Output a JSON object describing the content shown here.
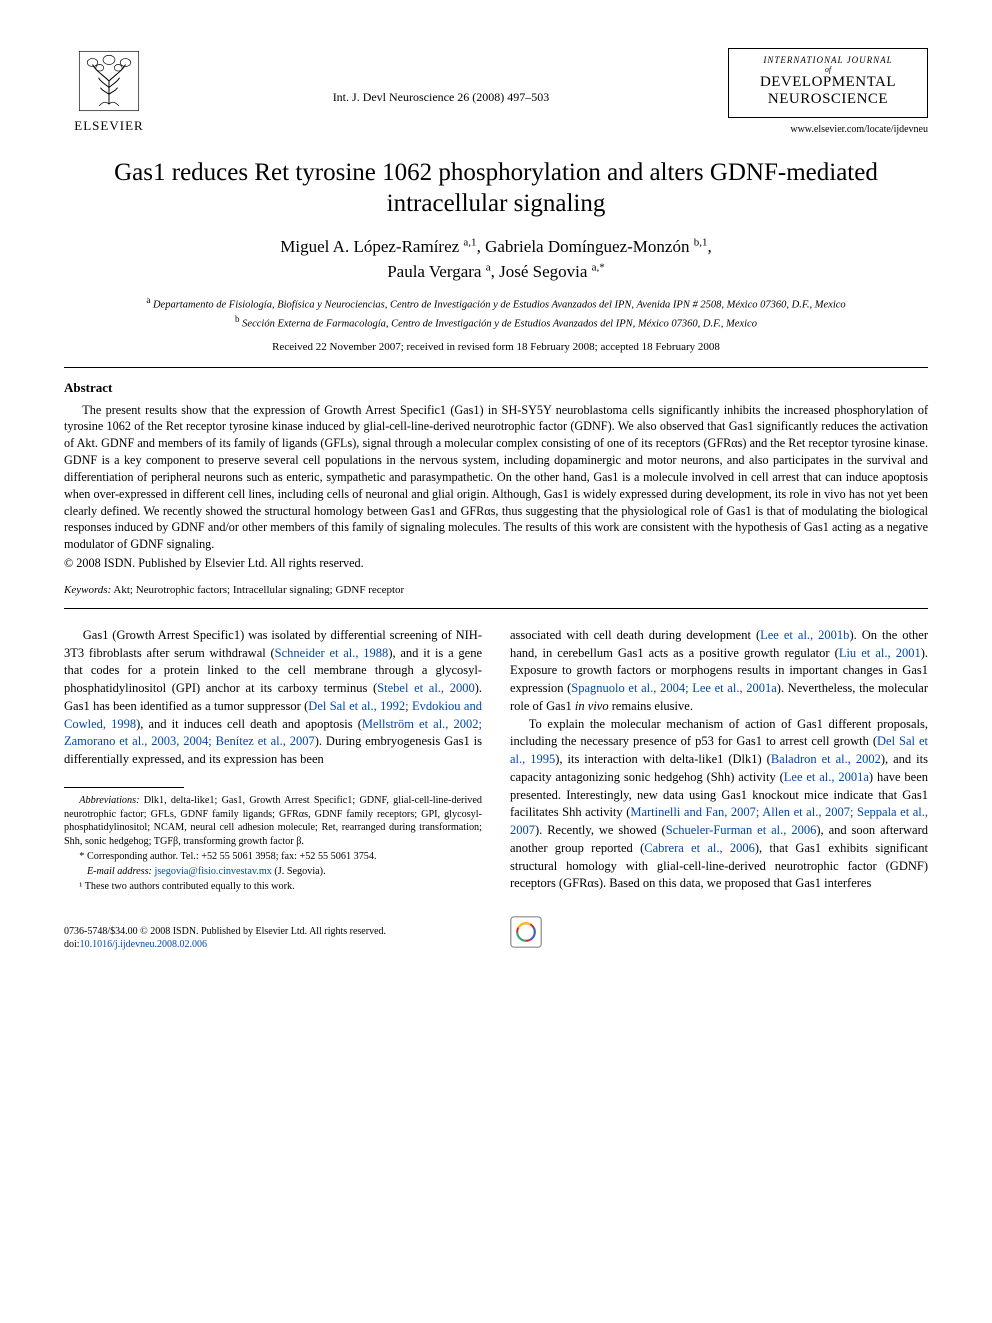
{
  "publisher": {
    "name": "ELSEVIER"
  },
  "citation": "Int. J. Devl Neuroscience 26 (2008) 497–503",
  "journal": {
    "top": "INTERNATIONAL JOURNAL",
    "of": "of",
    "main1": "DEVELOPMENTAL",
    "main2": "NEUROSCIENCE",
    "url": "www.elsevier.com/locate/ijdevneu"
  },
  "title": "Gas1 reduces Ret tyrosine 1062 phosphorylation and alters GDNF-mediated intracellular signaling",
  "authors_html": "Miguel A. López-Ramírez <sup>a,1</sup>, Gabriela Domínguez-Monzón <sup>b,1</sup>,<br>Paula Vergara <sup>a</sup>, José Segovia <sup>a,*</sup>",
  "affiliations": {
    "a": "Departamento de Fisiología, Biofísica y Neurociencias, Centro de Investigación y de Estudios Avanzados del IPN, Avenida IPN # 2508, México 07360, D.F., Mexico",
    "b": "Sección Externa de Farmacología, Centro de Investigación y de Estudios Avanzados del IPN, México 07360, D.F., Mexico"
  },
  "dates": "Received 22 November 2007; received in revised form 18 February 2008; accepted 18 February 2008",
  "abstract": {
    "heading": "Abstract",
    "body": "The present results show that the expression of Growth Arrest Specific1 (Gas1) in SH-SY5Y neuroblastoma cells significantly inhibits the increased phosphorylation of tyrosine 1062 of the Ret receptor tyrosine kinase induced by glial-cell-line-derived neurotrophic factor (GDNF). We also observed that Gas1 significantly reduces the activation of Akt. GDNF and members of its family of ligands (GFLs), signal through a molecular complex consisting of one of its receptors (GFRαs) and the Ret receptor tyrosine kinase. GDNF is a key component to preserve several cell populations in the nervous system, including dopaminergic and motor neurons, and also participates in the survival and differentiation of peripheral neurons such as enteric, sympathetic and parasympathetic. On the other hand, Gas1 is a molecule involved in cell arrest that can induce apoptosis when over-expressed in different cell lines, including cells of neuronal and glial origin. Although, Gas1 is widely expressed during development, its role in vivo has not yet been clearly defined. We recently showed the structural homology between Gas1 and GFRαs, thus suggesting that the physiological role of Gas1 is that of modulating the biological responses induced by GDNF and/or other members of this family of signaling molecules. The results of this work are consistent with the hypothesis of Gas1 acting as a negative modulator of GDNF signaling.",
    "copyright": "© 2008 ISDN. Published by Elsevier Ltd. All rights reserved."
  },
  "keywords": {
    "label": "Keywords:",
    "value": "Akt; Neurotrophic factors; Intracellular signaling; GDNF receptor"
  },
  "body": {
    "leftcol": "Gas1 (Growth Arrest Specific1) was isolated by differential screening of NIH-3T3 fibroblasts after serum withdrawal (<span class=\"reflink\">Schneider et al., 1988</span>), and it is a gene that codes for a protein linked to the cell membrane through a glycosyl-phosphatidylinositol (GPI) anchor at its carboxy terminus (<span class=\"reflink\">Stebel et al., 2000</span>). Gas1 has been identified as a tumor suppressor (<span class=\"reflink\">Del Sal et al., 1992; Evdokiou and Cowled, 1998</span>), and it induces cell death and apoptosis (<span class=\"reflink\">Mellström et al., 2002; Zamorano et al., 2003, 2004; Benítez et al., 2007</span>). During embryogenesis Gas1 is differentially expressed, and its expression has been",
    "rightcol_p1": "associated with cell death during development (<span class=\"reflink\">Lee et al., 2001b</span>). On the other hand, in cerebellum Gas1 acts as a positive growth regulator (<span class=\"reflink\">Liu et al., 2001</span>). Exposure to growth factors or morphogens results in important changes in Gas1 expression (<span class=\"reflink\">Spagnuolo et al., 2004; Lee et al., 2001a</span>). Nevertheless, the molecular role of Gas1 <i>in vivo</i> remains elusive.",
    "rightcol_p2": "To explain the molecular mechanism of action of Gas1 different proposals, including the necessary presence of p53 for Gas1 to arrest cell growth (<span class=\"reflink\">Del Sal et al., 1995</span>), its interaction with delta-like1 (Dlk1) (<span class=\"reflink\">Baladron et al., 2002</span>), and its capacity antagonizing sonic hedgehog (Shh) activity (<span class=\"reflink\">Lee et al., 2001a</span>) have been presented. Interestingly, new data using Gas1 knockout mice indicate that Gas1 facilitates Shh activity (<span class=\"reflink\">Martinelli and Fan, 2007; Allen et al., 2007; Seppala et al., 2007</span>). Recently, we showed (<span class=\"reflink\">Schueler-Furman et al., 2006</span>), and soon afterward another group reported (<span class=\"reflink\">Cabrera et al., 2006</span>), that Gas1 exhibits significant structural homology with glial-cell-line-derived neurotrophic factor (GDNF) receptors (GFRαs). Based on this data, we proposed that Gas1 interferes"
  },
  "footnotes": {
    "abbr_label": "Abbreviations:",
    "abbr_text": "Dlk1, delta-like1; Gas1, Growth Arrest Specific1; GDNF, glial-cell-line-derived neurotrophic factor; GFLs, GDNF family ligands; GFRαs, GDNF family receptors; GPI, glycosyl-phosphatidylinositol; NCAM, neural cell adhesion molecule; Ret, rearranged during transformation; Shh, sonic hedgehog; TGFβ, transforming growth factor β.",
    "corresponding": "* Corresponding author. Tel.: +52 55 5061 3958; fax: +52 55 5061 3754.",
    "email_label": "E-mail address:",
    "email_value": "jsegovia@fisio.cinvestav.mx",
    "email_suffix": " (J. Segovia).",
    "contrib": "¹ These two authors contributed equally to this work."
  },
  "footer": {
    "issn": "0736-5748/$34.00 © 2008 ISDN. Published by Elsevier Ltd. All rights reserved.",
    "doi_label": "doi:",
    "doi_value": "10.1016/j.ijdevneu.2008.02.006"
  },
  "colors": {
    "link": "#0047ab",
    "text": "#000000",
    "bg": "#ffffff"
  }
}
